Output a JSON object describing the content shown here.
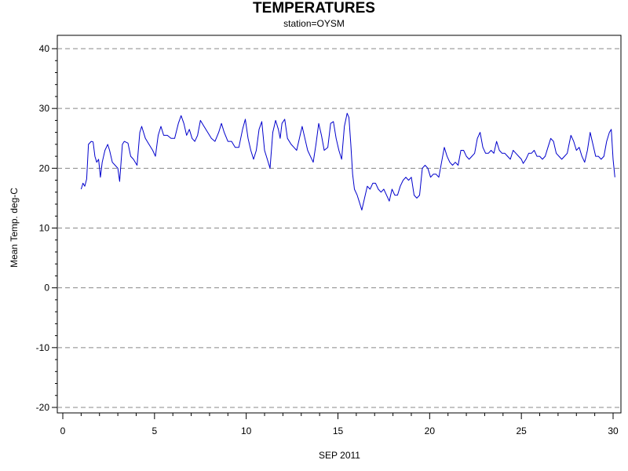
{
  "chart_data": {
    "type": "line",
    "title": "TEMPERATURES",
    "subtitle": "station=OYSM",
    "xlabel": "SEP 2011",
    "ylabel": "Mean Temp. deg-C",
    "xlim": [
      0,
      30.2
    ],
    "ylim": [
      -21,
      41
    ],
    "xticks": [
      0,
      5,
      10,
      15,
      20,
      25,
      30
    ],
    "yticks": [
      -20,
      -10,
      0,
      10,
      20,
      30,
      40
    ],
    "grid": "horizontal dashed at major y ticks",
    "series": [
      {
        "color": "#0000cc",
        "points": [
          [
            1.0,
            16.5
          ],
          [
            1.1,
            17.5
          ],
          [
            1.2,
            17.0
          ],
          [
            1.3,
            18.2
          ],
          [
            1.4,
            24.0
          ],
          [
            1.55,
            24.5
          ],
          [
            1.65,
            24.4
          ],
          [
            1.75,
            22.0
          ],
          [
            1.85,
            21.0
          ],
          [
            1.95,
            21.5
          ],
          [
            2.05,
            18.5
          ],
          [
            2.15,
            21.0
          ],
          [
            2.3,
            23.0
          ],
          [
            2.45,
            24.0
          ],
          [
            2.55,
            23.0
          ],
          [
            2.7,
            21.0
          ],
          [
            2.85,
            20.5
          ],
          [
            3.0,
            20.0
          ],
          [
            3.1,
            17.8
          ],
          [
            3.25,
            24.0
          ],
          [
            3.35,
            24.5
          ],
          [
            3.55,
            24.2
          ],
          [
            3.7,
            22.0
          ],
          [
            3.85,
            21.5
          ],
          [
            3.95,
            21.0
          ],
          [
            4.05,
            20.5
          ],
          [
            4.2,
            26.0
          ],
          [
            4.3,
            27.0
          ],
          [
            4.5,
            25.0
          ],
          [
            4.7,
            24.0
          ],
          [
            4.9,
            23.0
          ],
          [
            5.05,
            22.0
          ],
          [
            5.2,
            25.5
          ],
          [
            5.35,
            27.0
          ],
          [
            5.5,
            25.5
          ],
          [
            5.7,
            25.5
          ],
          [
            5.9,
            25.0
          ],
          [
            6.1,
            25.0
          ],
          [
            6.3,
            27.5
          ],
          [
            6.45,
            28.8
          ],
          [
            6.6,
            27.5
          ],
          [
            6.75,
            25.5
          ],
          [
            6.9,
            26.5
          ],
          [
            7.05,
            25.0
          ],
          [
            7.2,
            24.5
          ],
          [
            7.35,
            25.5
          ],
          [
            7.5,
            28.0
          ],
          [
            7.7,
            27.0
          ],
          [
            7.9,
            26.0
          ],
          [
            8.1,
            25.0
          ],
          [
            8.3,
            24.5
          ],
          [
            8.5,
            26.0
          ],
          [
            8.65,
            27.5
          ],
          [
            8.8,
            26.0
          ],
          [
            9.0,
            24.5
          ],
          [
            9.2,
            24.5
          ],
          [
            9.4,
            23.5
          ],
          [
            9.6,
            23.5
          ],
          [
            9.8,
            26.5
          ],
          [
            9.95,
            28.2
          ],
          [
            10.1,
            25.0
          ],
          [
            10.25,
            23.0
          ],
          [
            10.4,
            21.5
          ],
          [
            10.55,
            23.0
          ],
          [
            10.7,
            26.5
          ],
          [
            10.85,
            27.8
          ],
          [
            11.0,
            23.0
          ],
          [
            11.15,
            21.5
          ],
          [
            11.3,
            20.0
          ],
          [
            11.45,
            26.0
          ],
          [
            11.6,
            28.0
          ],
          [
            11.75,
            26.5
          ],
          [
            11.85,
            25.0
          ],
          [
            11.95,
            27.5
          ],
          [
            12.1,
            28.2
          ],
          [
            12.25,
            25.0
          ],
          [
            12.45,
            24.0
          ],
          [
            12.6,
            23.5
          ],
          [
            12.75,
            23.0
          ],
          [
            12.9,
            25.0
          ],
          [
            13.05,
            27.0
          ],
          [
            13.2,
            25.0
          ],
          [
            13.35,
            23.0
          ],
          [
            13.5,
            22.0
          ],
          [
            13.65,
            21.0
          ],
          [
            13.8,
            24.0
          ],
          [
            13.95,
            27.5
          ],
          [
            14.1,
            25.5
          ],
          [
            14.25,
            23.0
          ],
          [
            14.45,
            23.5
          ],
          [
            14.6,
            27.5
          ],
          [
            14.75,
            27.8
          ],
          [
            14.9,
            25.0
          ],
          [
            15.05,
            23.0
          ],
          [
            15.2,
            21.5
          ],
          [
            15.35,
            27.0
          ],
          [
            15.5,
            29.2
          ],
          [
            15.6,
            28.5
          ],
          [
            15.7,
            24.0
          ],
          [
            15.8,
            19.0
          ],
          [
            15.9,
            16.5
          ],
          [
            16.05,
            15.5
          ],
          [
            16.15,
            14.5
          ],
          [
            16.3,
            13.0
          ],
          [
            16.45,
            15.0
          ],
          [
            16.6,
            17.0
          ],
          [
            16.75,
            16.5
          ],
          [
            16.9,
            17.5
          ],
          [
            17.05,
            17.5
          ],
          [
            17.2,
            16.5
          ],
          [
            17.35,
            16.0
          ],
          [
            17.5,
            16.5
          ],
          [
            17.65,
            15.5
          ],
          [
            17.8,
            14.5
          ],
          [
            17.95,
            16.5
          ],
          [
            18.1,
            15.5
          ],
          [
            18.25,
            15.5
          ],
          [
            18.4,
            17.0
          ],
          [
            18.55,
            18.0
          ],
          [
            18.7,
            18.5
          ],
          [
            18.85,
            18.0
          ],
          [
            19.0,
            18.5
          ],
          [
            19.15,
            15.5
          ],
          [
            19.3,
            15.0
          ],
          [
            19.45,
            15.5
          ],
          [
            19.6,
            20.0
          ],
          [
            19.75,
            20.5
          ],
          [
            19.9,
            20.0
          ],
          [
            20.05,
            18.5
          ],
          [
            20.2,
            19.0
          ],
          [
            20.35,
            19.0
          ],
          [
            20.5,
            18.5
          ],
          [
            20.65,
            21.0
          ],
          [
            20.8,
            23.5
          ],
          [
            20.95,
            22.0
          ],
          [
            21.1,
            21.0
          ],
          [
            21.25,
            20.5
          ],
          [
            21.4,
            21.0
          ],
          [
            21.55,
            20.5
          ],
          [
            21.7,
            23.0
          ],
          [
            21.85,
            23.0
          ],
          [
            22.0,
            22.0
          ],
          [
            22.15,
            21.5
          ],
          [
            22.3,
            22.0
          ],
          [
            22.45,
            22.5
          ],
          [
            22.6,
            25.0
          ],
          [
            22.75,
            26.0
          ],
          [
            22.9,
            23.5
          ],
          [
            23.05,
            22.5
          ],
          [
            23.2,
            22.5
          ],
          [
            23.35,
            23.0
          ],
          [
            23.5,
            22.5
          ],
          [
            23.65,
            24.5
          ],
          [
            23.8,
            23.0
          ],
          [
            23.95,
            22.5
          ],
          [
            24.1,
            22.5
          ],
          [
            24.25,
            22.0
          ],
          [
            24.4,
            21.5
          ],
          [
            24.55,
            23.0
          ],
          [
            24.7,
            22.5
          ],
          [
            24.85,
            22.0
          ],
          [
            25.0,
            21.5
          ],
          [
            25.1,
            20.8
          ],
          [
            25.25,
            21.5
          ],
          [
            25.4,
            22.5
          ],
          [
            25.55,
            22.5
          ],
          [
            25.7,
            23.0
          ],
          [
            25.85,
            22.0
          ],
          [
            26.0,
            22.0
          ],
          [
            26.15,
            21.5
          ],
          [
            26.3,
            22.0
          ],
          [
            26.45,
            23.5
          ],
          [
            26.6,
            25.0
          ],
          [
            26.75,
            24.5
          ],
          [
            26.9,
            22.5
          ],
          [
            27.05,
            22.0
          ],
          [
            27.2,
            21.5
          ],
          [
            27.35,
            22.0
          ],
          [
            27.5,
            22.5
          ],
          [
            27.6,
            24.0
          ],
          [
            27.7,
            25.5
          ],
          [
            27.85,
            24.5
          ],
          [
            28.0,
            23.0
          ],
          [
            28.15,
            23.5
          ],
          [
            28.3,
            22.0
          ],
          [
            28.45,
            21.0
          ],
          [
            28.6,
            23.0
          ],
          [
            28.75,
            26.0
          ],
          [
            28.9,
            24.0
          ],
          [
            29.05,
            22.0
          ],
          [
            29.2,
            22.0
          ],
          [
            29.35,
            21.5
          ],
          [
            29.5,
            22.0
          ],
          [
            29.65,
            24.5
          ],
          [
            29.8,
            26.0
          ],
          [
            29.9,
            26.5
          ],
          [
            30.0,
            21.5
          ],
          [
            30.1,
            18.5
          ]
        ]
      }
    ]
  }
}
